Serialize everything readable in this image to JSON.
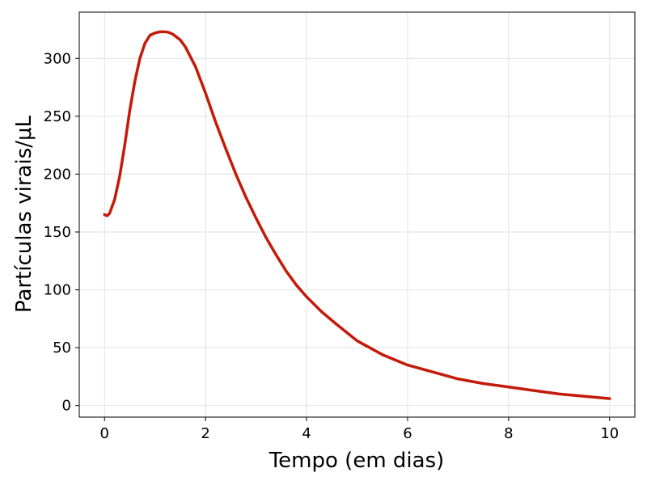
{
  "chart_data": {
    "type": "line",
    "title": "",
    "xlabel": "Tempo (em dias)",
    "ylabel": "Partículas virais/μL",
    "xlim": [
      -0.5,
      10.5
    ],
    "ylim": [
      -10,
      340
    ],
    "xticks": [
      0,
      2,
      4,
      6,
      8,
      10
    ],
    "yticks": [
      0,
      50,
      100,
      150,
      200,
      250,
      300
    ],
    "grid": true,
    "legend": "none",
    "series": [
      {
        "color": "#c41a0a",
        "x": [
          0,
          0.05,
          0.1,
          0.2,
          0.3,
          0.4,
          0.5,
          0.6,
          0.7,
          0.8,
          0.9,
          1.0,
          1.1,
          1.2,
          1.27,
          1.35,
          1.5,
          1.6,
          1.8,
          2.0,
          2.2,
          2.4,
          2.6,
          2.8,
          3.0,
          3.2,
          3.4,
          3.6,
          3.8,
          4.0,
          4.3,
          4.6,
          5.0,
          5.5,
          6.0,
          6.5,
          7.0,
          7.5,
          8.0,
          8.5,
          9.0,
          9.5,
          10.0
        ],
        "y": [
          165,
          164,
          166,
          178,
          198,
          225,
          255,
          280,
          300,
          313,
          320,
          322,
          323,
          323,
          322.5,
          321,
          316,
          310,
          293,
          270,
          245,
          222,
          200,
          180,
          162,
          145,
          130,
          116,
          104,
          94,
          81,
          70,
          56,
          44,
          35,
          29,
          23,
          19,
          16,
          13,
          10,
          8,
          6
        ]
      }
    ]
  }
}
